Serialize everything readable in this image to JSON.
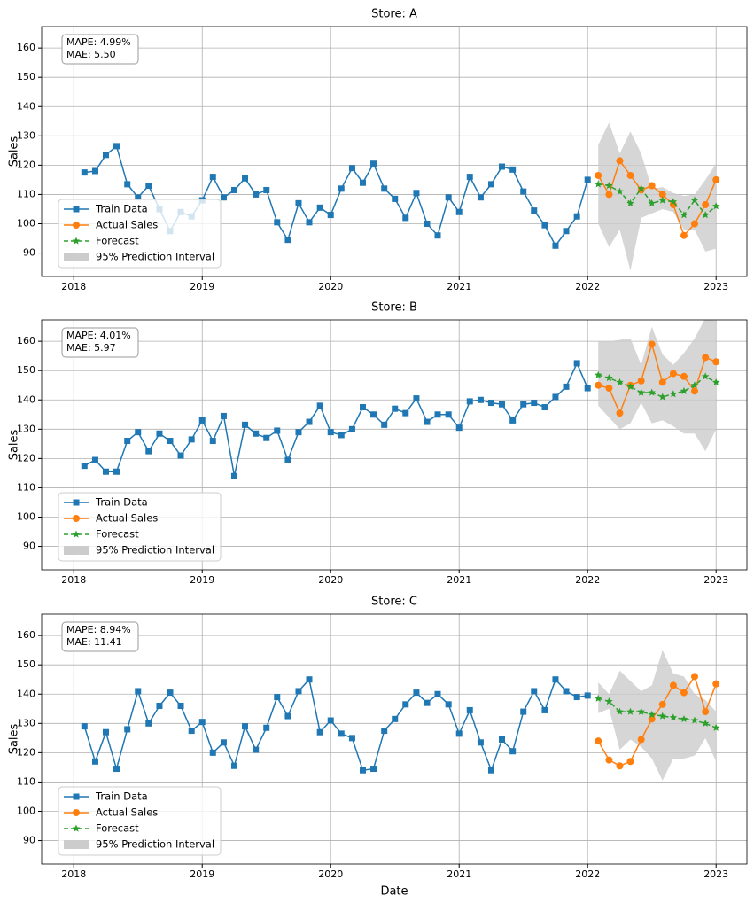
{
  "chart_data": [
    {
      "type": "line",
      "title": "Store: A",
      "ylabel": "Sales",
      "annotations": [
        "MAPE: 4.99%",
        "MAE: 5.50"
      ],
      "xlim": [
        2017.75,
        2023.24
      ],
      "xticks": [
        2018,
        2019,
        2020,
        2021,
        2022,
        2023
      ],
      "ylim": [
        82,
        167.3
      ],
      "yticks": [
        90,
        100,
        110,
        120,
        130,
        140,
        150,
        160
      ],
      "grid": true,
      "legend": "lower left",
      "series": [
        {
          "name": "Train Data",
          "color": "#1f77b4",
          "marker": "square",
          "linestyle": "solid",
          "x": [
            2018.083,
            2018.167,
            2018.25,
            2018.333,
            2018.417,
            2018.5,
            2018.583,
            2018.667,
            2018.75,
            2018.833,
            2018.917,
            2019,
            2019.083,
            2019.167,
            2019.25,
            2019.333,
            2019.417,
            2019.5,
            2019.583,
            2019.667,
            2019.75,
            2019.833,
            2019.917,
            2020,
            2020.083,
            2020.167,
            2020.25,
            2020.333,
            2020.417,
            2020.5,
            2020.583,
            2020.667,
            2020.75,
            2020.833,
            2020.917,
            2021,
            2021.083,
            2021.167,
            2021.25,
            2021.333,
            2021.417,
            2021.5,
            2021.583,
            2021.667,
            2021.75,
            2021.833,
            2021.917,
            2022
          ],
          "values": [
            117.5,
            118,
            123.5,
            126.5,
            113.5,
            109,
            113,
            105,
            97.5,
            104,
            102.5,
            108,
            116,
            109,
            111.5,
            115.5,
            110,
            111.5,
            100.5,
            94.5,
            107,
            100.5,
            105.5,
            103,
            112,
            119,
            114,
            120.5,
            112,
            108.5,
            102,
            110.5,
            100,
            96,
            109,
            104,
            116,
            109,
            113.5,
            119.5,
            118.5,
            111,
            104.5,
            99.5,
            92.5,
            97.5,
            102.5,
            115
          ]
        },
        {
          "name": "Actual Sales",
          "color": "#ff7f0e",
          "marker": "circle",
          "linestyle": "solid",
          "x": [
            2022.083,
            2022.167,
            2022.25,
            2022.333,
            2022.417,
            2022.5,
            2022.583,
            2022.667,
            2022.75,
            2022.833,
            2022.917,
            2023
          ],
          "values": [
            116.5,
            110,
            121.5,
            116.5,
            111.5,
            113,
            110,
            106.5,
            96,
            100,
            106.5,
            115
          ]
        },
        {
          "name": "Forecast",
          "color": "#2ca02c",
          "marker": "star",
          "linestyle": "dashed",
          "x": [
            2022.083,
            2022.167,
            2022.25,
            2022.333,
            2022.417,
            2022.5,
            2022.583,
            2022.667,
            2022.75,
            2022.833,
            2022.917,
            2023
          ],
          "values": [
            113.5,
            113,
            111,
            107,
            112,
            107,
            108,
            107.5,
            103,
            108,
            103,
            106
          ]
        }
      ],
      "interval": {
        "name": "95% Prediction Interval",
        "color": "#cccccc",
        "x": [
          2022.083,
          2022.167,
          2022.25,
          2022.333,
          2022.417,
          2022.5,
          2022.583,
          2022.667,
          2022.75,
          2022.833,
          2022.917,
          2023
        ],
        "lower": [
          100,
          92,
          98,
          84,
          102,
          103.5,
          105,
          104,
          98,
          98,
          90.5,
          91.5
        ],
        "upper": [
          127,
          134.5,
          124,
          131.5,
          124,
          112,
          112.5,
          110.5,
          109.5,
          110,
          115,
          120.5
        ]
      }
    },
    {
      "type": "line",
      "title": "Store: B",
      "ylabel": "Sales",
      "annotations": [
        "MAPE: 4.01%",
        "MAE: 5.97"
      ],
      "xlim": [
        2017.75,
        2023.24
      ],
      "xticks": [
        2018,
        2019,
        2020,
        2021,
        2022,
        2023
      ],
      "ylim": [
        82,
        167.3
      ],
      "yticks": [
        90,
        100,
        110,
        120,
        130,
        140,
        150,
        160
      ],
      "grid": true,
      "legend": "lower left",
      "series": [
        {
          "name": "Train Data",
          "color": "#1f77b4",
          "marker": "square",
          "linestyle": "solid",
          "x": [
            2018.083,
            2018.167,
            2018.25,
            2018.333,
            2018.417,
            2018.5,
            2018.583,
            2018.667,
            2018.75,
            2018.833,
            2018.917,
            2019,
            2019.083,
            2019.167,
            2019.25,
            2019.333,
            2019.417,
            2019.5,
            2019.583,
            2019.667,
            2019.75,
            2019.833,
            2019.917,
            2020,
            2020.083,
            2020.167,
            2020.25,
            2020.333,
            2020.417,
            2020.5,
            2020.583,
            2020.667,
            2020.75,
            2020.833,
            2020.917,
            2021,
            2021.083,
            2021.167,
            2021.25,
            2021.333,
            2021.417,
            2021.5,
            2021.583,
            2021.667,
            2021.75,
            2021.833,
            2021.917,
            2022
          ],
          "values": [
            117.5,
            119.5,
            115.5,
            115.5,
            126,
            129,
            122.5,
            128.5,
            126,
            121,
            126.5,
            133,
            126,
            134.5,
            114,
            131.5,
            128.5,
            127,
            129.5,
            119.5,
            129,
            132.5,
            138,
            129,
            128,
            130,
            137.5,
            135,
            131.5,
            137,
            135.5,
            140.5,
            132.5,
            135,
            135,
            130.5,
            139.5,
            140,
            139,
            138.5,
            133,
            138.5,
            139,
            137.5,
            141,
            144.5,
            152.5,
            144
          ]
        },
        {
          "name": "Actual Sales",
          "color": "#ff7f0e",
          "marker": "circle",
          "linestyle": "solid",
          "x": [
            2022.083,
            2022.167,
            2022.25,
            2022.333,
            2022.417,
            2022.5,
            2022.583,
            2022.667,
            2022.75,
            2022.833,
            2022.917,
            2023
          ],
          "values": [
            145,
            144,
            135.5,
            145,
            146.5,
            159,
            146,
            149,
            148,
            143,
            154.5,
            153
          ]
        },
        {
          "name": "Forecast",
          "color": "#2ca02c",
          "marker": "star",
          "linestyle": "dashed",
          "x": [
            2022.083,
            2022.167,
            2022.25,
            2022.333,
            2022.417,
            2022.5,
            2022.583,
            2022.667,
            2022.75,
            2022.833,
            2022.917,
            2023
          ],
          "values": [
            148.5,
            147.5,
            146,
            144.5,
            142.5,
            142.5,
            141,
            142,
            143,
            145,
            148,
            146
          ]
        }
      ],
      "interval": {
        "name": "95% Prediction Interval",
        "color": "#cccccc",
        "x": [
          2022.083,
          2022.167,
          2022.25,
          2022.333,
          2022.417,
          2022.5,
          2022.583,
          2022.667,
          2022.75,
          2022.833,
          2022.917,
          2023
        ],
        "lower": [
          138,
          134,
          130,
          132,
          139,
          132,
          133,
          131,
          128.5,
          128.5,
          122.5,
          130
        ],
        "upper": [
          160,
          160,
          160.5,
          161,
          152,
          165,
          155.5,
          152,
          156,
          161,
          168,
          167
        ]
      }
    },
    {
      "type": "line",
      "title": "Store: C",
      "ylabel": "Sales",
      "xlabel": "Date",
      "annotations": [
        "MAPE: 8.94%",
        "MAE: 11.41"
      ],
      "xlim": [
        2017.75,
        2023.24
      ],
      "xticks": [
        2018,
        2019,
        2020,
        2021,
        2022,
        2023
      ],
      "ylim": [
        82,
        167.3
      ],
      "yticks": [
        90,
        100,
        110,
        120,
        130,
        140,
        150,
        160
      ],
      "grid": true,
      "legend": "lower left",
      "series": [
        {
          "name": "Train Data",
          "color": "#1f77b4",
          "marker": "square",
          "linestyle": "solid",
          "x": [
            2018.083,
            2018.167,
            2018.25,
            2018.333,
            2018.417,
            2018.5,
            2018.583,
            2018.667,
            2018.75,
            2018.833,
            2018.917,
            2019,
            2019.083,
            2019.167,
            2019.25,
            2019.333,
            2019.417,
            2019.5,
            2019.583,
            2019.667,
            2019.75,
            2019.833,
            2019.917,
            2020,
            2020.083,
            2020.167,
            2020.25,
            2020.333,
            2020.417,
            2020.5,
            2020.583,
            2020.667,
            2020.75,
            2020.833,
            2020.917,
            2021,
            2021.083,
            2021.167,
            2021.25,
            2021.333,
            2021.417,
            2021.5,
            2021.583,
            2021.667,
            2021.75,
            2021.833,
            2021.917,
            2022
          ],
          "values": [
            129,
            117,
            127,
            114.5,
            128,
            141,
            130,
            136,
            140.5,
            136,
            127.5,
            130.5,
            120,
            123.5,
            115.5,
            129,
            121,
            128.5,
            139,
            132.5,
            141,
            145,
            127,
            131,
            126.5,
            125,
            114,
            114.5,
            127.5,
            131.5,
            136.5,
            140.5,
            137,
            140,
            136.5,
            126.5,
            134.5,
            123.5,
            114,
            124.5,
            120.5,
            134,
            141,
            134.5,
            145,
            141,
            139,
            139.5
          ]
        },
        {
          "name": "Actual Sales",
          "color": "#ff7f0e",
          "marker": "circle",
          "linestyle": "solid",
          "x": [
            2022.083,
            2022.167,
            2022.25,
            2022.333,
            2022.417,
            2022.5,
            2022.583,
            2022.667,
            2022.75,
            2022.833,
            2022.917,
            2023
          ],
          "values": [
            124,
            117.5,
            115.5,
            117,
            124.5,
            131.5,
            136.5,
            143,
            140.5,
            146,
            134,
            143.5
          ]
        },
        {
          "name": "Forecast",
          "color": "#2ca02c",
          "marker": "star",
          "linestyle": "dashed",
          "x": [
            2022.083,
            2022.167,
            2022.25,
            2022.333,
            2022.417,
            2022.5,
            2022.583,
            2022.667,
            2022.75,
            2022.833,
            2022.917,
            2023
          ],
          "values": [
            138.5,
            137.5,
            134,
            134,
            134,
            133,
            132.5,
            132,
            131.5,
            131,
            130,
            128.5
          ]
        }
      ],
      "interval": {
        "name": "95% Prediction Interval",
        "color": "#cccccc",
        "x": [
          2022.083,
          2022.167,
          2022.25,
          2022.333,
          2022.417,
          2022.5,
          2022.583,
          2022.667,
          2022.75,
          2022.833,
          2022.917,
          2023
        ],
        "lower": [
          133.5,
          135,
          121,
          124.5,
          122,
          118,
          110.5,
          118,
          118,
          119,
          125,
          117
        ],
        "upper": [
          144,
          140,
          148,
          144.5,
          141,
          143,
          155,
          147,
          146,
          140,
          138,
          134
        ]
      }
    }
  ]
}
